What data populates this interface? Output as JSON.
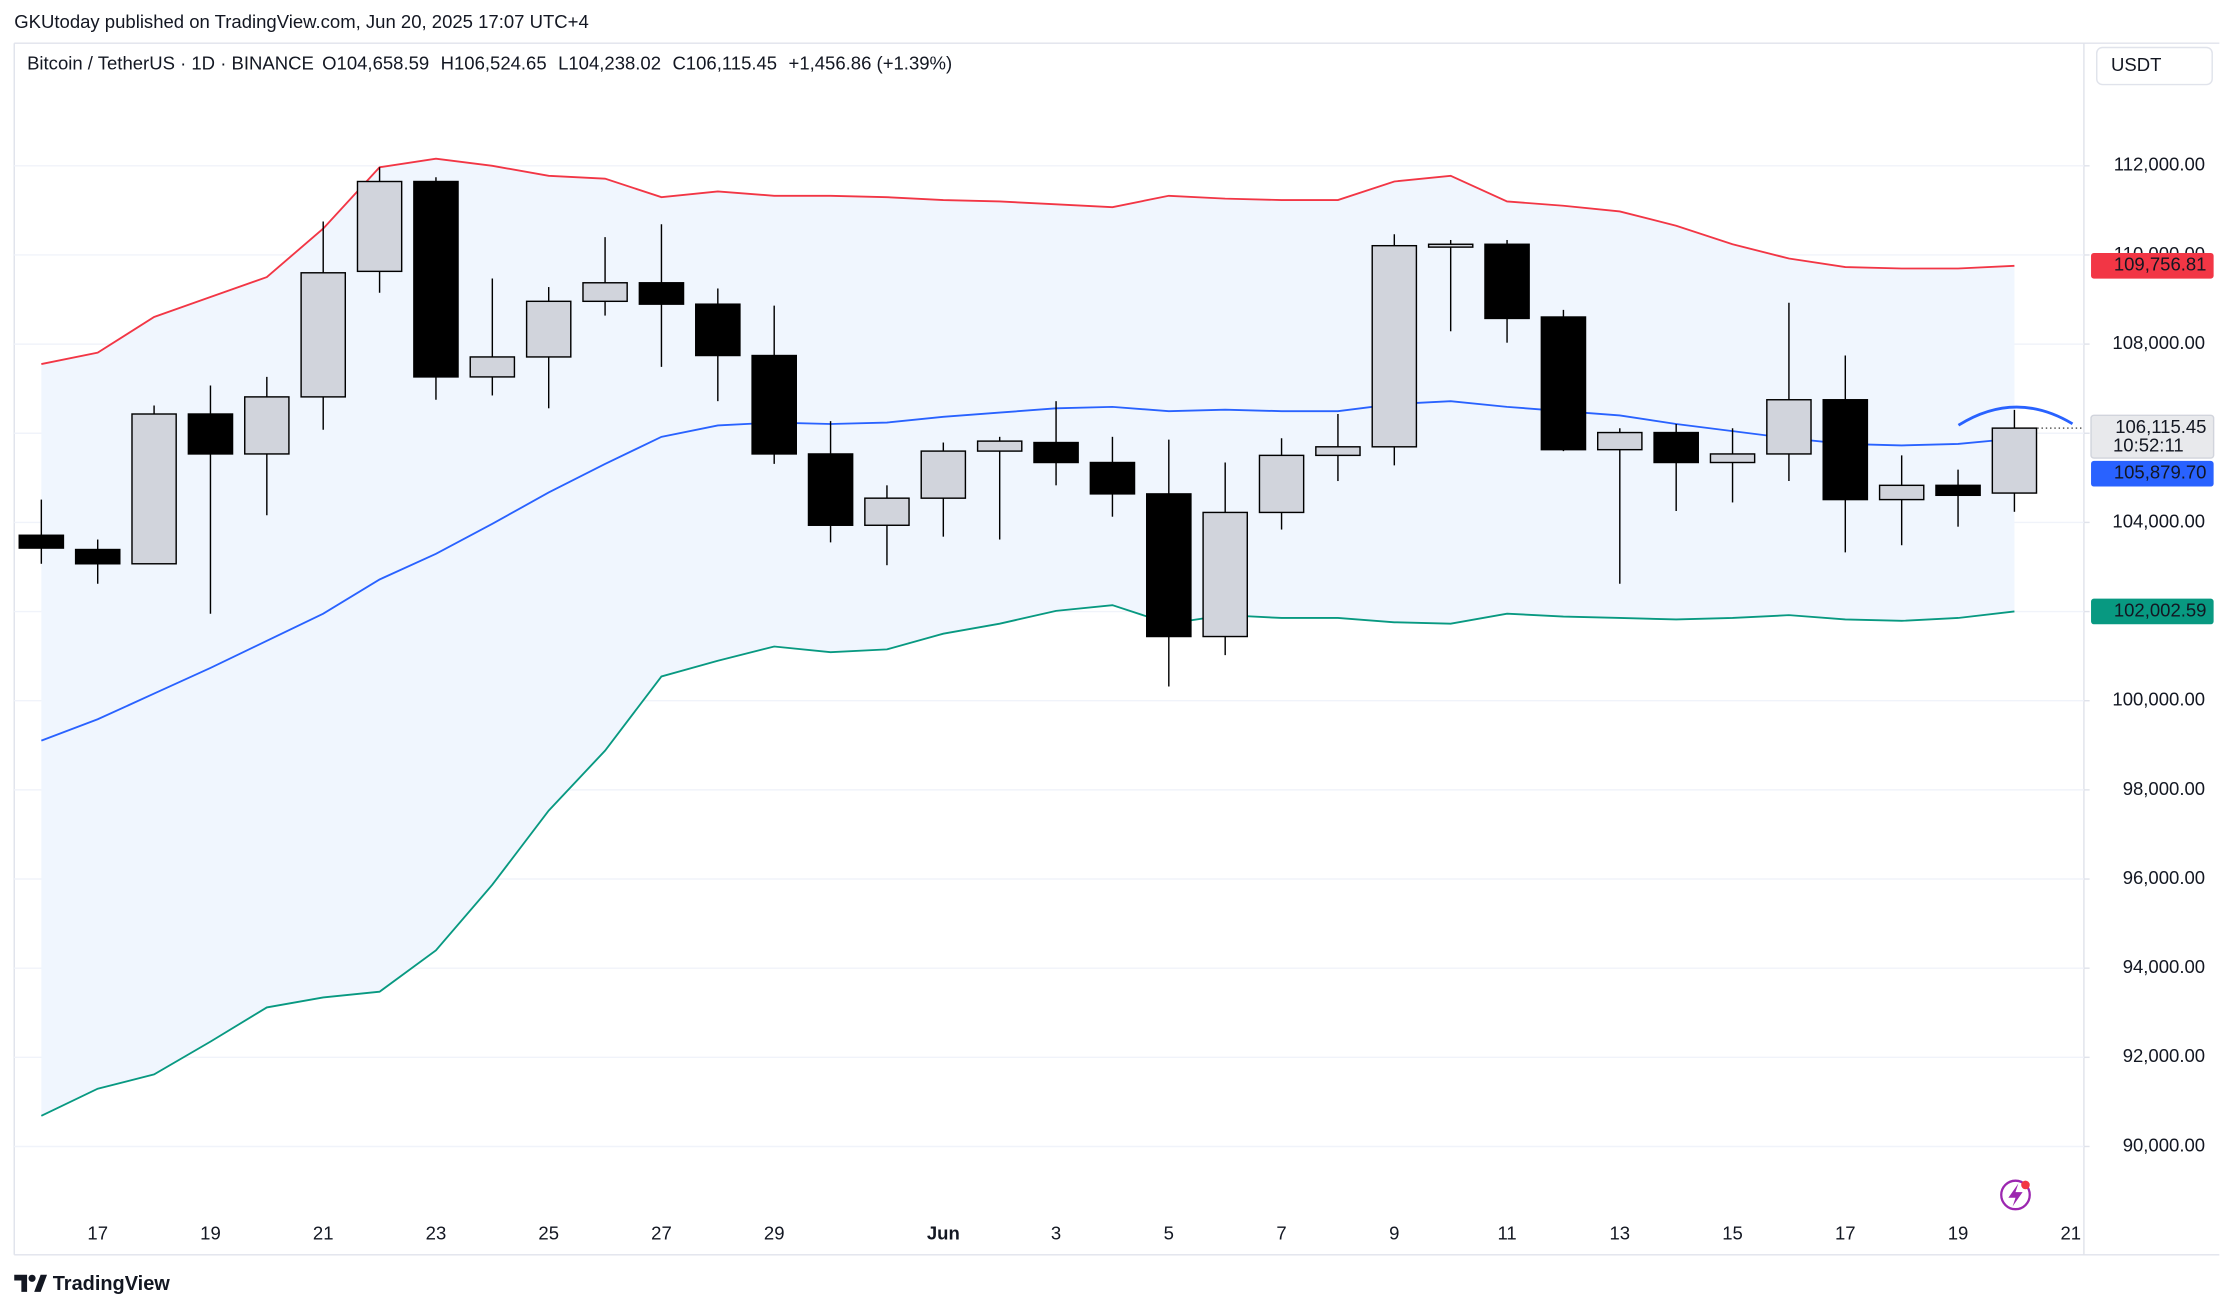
{
  "chart_data": {
    "type": "candlestick",
    "attribution": "GKUtoday published on TradingView.com, Jun 20, 2025 17:07 UTC+4",
    "symbol": "Bitcoin / TetherUS · 1D · BINANCE",
    "legend": {
      "open": "O104,658.59",
      "high": "H106,524.65",
      "low": "L104,238.02",
      "close": "C106,115.45",
      "change": "+1,456.86 (+1.39%)"
    },
    "currency": "USDT",
    "brand": "TradingView",
    "countdown": "10:52:11",
    "categories": [
      null,
      "17",
      null,
      "19",
      null,
      "21",
      null,
      "23",
      null,
      "25",
      null,
      "27",
      null,
      "29",
      null,
      null,
      "Jun",
      null,
      "3",
      null,
      "5",
      null,
      "7",
      null,
      "9",
      null,
      "11",
      null,
      "13",
      null,
      "15",
      null,
      "17",
      null,
      "19",
      null,
      "21"
    ],
    "open": [
      103712,
      103392,
      103072,
      106432,
      105536,
      106816,
      109632,
      111648,
      107264,
      107712,
      108960,
      109376,
      108896,
      107744,
      105536,
      103936,
      104544,
      105600,
      105792,
      105344,
      104640,
      101440,
      104224,
      105504,
      105696,
      110176,
      110240,
      108608,
      105632,
      106016,
      105344,
      105536,
      106752,
      104512,
      104832,
      104658.59,
      null
    ],
    "high": [
      104512,
      103616,
      106624,
      107072,
      107264,
      110752,
      111968,
      111744,
      109472,
      109280,
      110400,
      110688,
      109248,
      108864,
      106272,
      104832,
      105792,
      105920,
      106720,
      105920,
      105856,
      105344,
      105888,
      106432,
      110464,
      110336,
      110336,
      108768,
      106112,
      106208,
      106112,
      108928,
      107744,
      105504,
      105184,
      106524.65,
      null
    ],
    "low": [
      103072,
      102624,
      103072,
      101952,
      104160,
      106080,
      109152,
      106752,
      106848,
      106560,
      108640,
      107488,
      106720,
      105312,
      103552,
      103040,
      103680,
      103616,
      104832,
      104128,
      100320,
      101024,
      103840,
      104928,
      105280,
      108288,
      108032,
      105600,
      102624,
      104256,
      104448,
      104928,
      103328,
      103488,
      103904,
      104238.02,
      null
    ],
    "close": [
      103424,
      103072,
      106432,
      105536,
      106816,
      109600,
      111648,
      107264,
      107712,
      108960,
      109376,
      108896,
      107744,
      105536,
      103936,
      104544,
      105600,
      105824,
      105344,
      104640,
      101440,
      104224,
      105504,
      105696,
      110208,
      110240,
      108576,
      105632,
      106016,
      105344,
      105536,
      106752,
      104512,
      104832,
      104608,
      106115.45,
      null
    ],
    "close_label": "106,115.45",
    "up_color": "#d1d4dc",
    "down_color": "#000000",
    "bands": [
      {
        "color": "#f23645",
        "last_label": "109,756.81",
        "values": [
          107552,
          107808,
          108608,
          109056,
          109504,
          110592,
          111968,
          112160,
          112000,
          111776,
          111712,
          111296,
          111424,
          111328,
          111328,
          111296,
          111232,
          111200,
          111136,
          111072,
          111328,
          111264,
          111232,
          111232,
          111648,
          111776,
          111200,
          111104,
          110976,
          110656,
          110240,
          109920,
          109728,
          109696,
          109696,
          109756.81,
          null
        ]
      },
      {
        "color": "#2962ff",
        "last_label": "105,879.70",
        "values": [
          99104,
          99584,
          100160,
          100736,
          101344,
          101952,
          102720,
          103296,
          103968,
          104672,
          105312,
          105920,
          106176,
          106240,
          106208,
          106240,
          106368,
          106464,
          106560,
          106592,
          106496,
          106528,
          106496,
          106496,
          106656,
          106720,
          106592,
          106496,
          106400,
          106208,
          106048,
          105888,
          105760,
          105728,
          105760,
          105879.7,
          null
        ]
      },
      {
        "color": "#089981",
        "last_label": "102,002.59",
        "values": [
          90688,
          91296,
          91616,
          92352,
          93120,
          93344,
          93472,
          94400,
          95872,
          97536,
          98880,
          100544,
          100896,
          101216,
          101088,
          101152,
          101504,
          101728,
          102016,
          102144,
          101728,
          101920,
          101856,
          101856,
          101760,
          101728,
          101952,
          101888,
          101856,
          101824,
          101856,
          101920,
          101824,
          101792,
          101856,
          102002.59,
          null
        ]
      }
    ],
    "band_fill": "#f0f6fe",
    "ylim": [
      87570,
      114750
    ],
    "yticks": [
      {
        "value": 90000,
        "label": "90,000.00"
      },
      {
        "value": 92000,
        "label": "92,000.00"
      },
      {
        "value": 94000,
        "label": "94,000.00"
      },
      {
        "value": 96000,
        "label": "96,000.00"
      },
      {
        "value": 98000,
        "label": "98,000.00"
      },
      {
        "value": 100000,
        "label": "100,000.00"
      },
      {
        "value": 102000,
        "label": "102,000.00"
      },
      {
        "value": 104000,
        "label": "104,000.00"
      },
      {
        "value": 106000,
        "label": "106,000.00"
      },
      {
        "value": 108000,
        "label": "108,000.00"
      },
      {
        "value": 110000,
        "label": "110,000.00"
      },
      {
        "value": 112000,
        "label": "112,000.00"
      }
    ],
    "grid": true
  }
}
